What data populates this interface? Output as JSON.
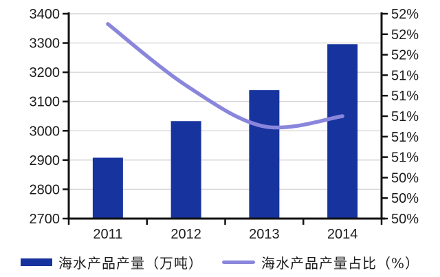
{
  "colors": {
    "bar": "#17339E",
    "line": "#8A86DC",
    "axis": "#111111",
    "grid": "#D6D6D6",
    "text": "#1c1c1c"
  },
  "chart_data": {
    "type": "bar+line",
    "categories": [
      "2011",
      "2012",
      "2013",
      "2014"
    ],
    "series": [
      {
        "name": "海水产品产量（万吨）",
        "type": "bar",
        "axis": "left",
        "values": [
          2908,
          3033,
          3139,
          3296
        ]
      },
      {
        "name": "海水产品产量占比（%）",
        "type": "line",
        "axis": "right",
        "values": [
          51.9,
          51.3,
          50.9,
          51.0
        ]
      }
    ],
    "left_axis": {
      "min": 2700,
      "max": 3400,
      "step": 100,
      "tick_labels": [
        "3400",
        "3300",
        "3200",
        "3100",
        "3000",
        "2900",
        "2800",
        "2700"
      ]
    },
    "right_axis": {
      "min": 50.0,
      "max": 52.0,
      "step": 0.2,
      "tick_labels": [
        "52%",
        "52%",
        "52%",
        "51%",
        "51%",
        "51%",
        "51%",
        "51%",
        "50%",
        "50%",
        "50%"
      ]
    },
    "grid": true,
    "legend_position": "bottom",
    "title": ""
  },
  "legend": {
    "bar_label": "海水产品产量（万吨）",
    "line_label": "海水产品产量占比（%）"
  }
}
